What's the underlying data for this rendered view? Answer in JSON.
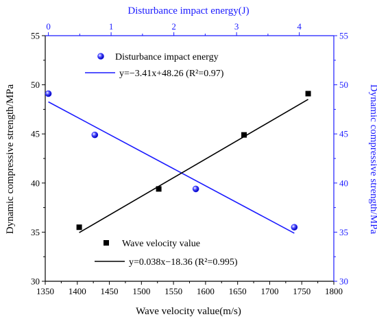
{
  "chart_data": {
    "type": "scatter",
    "x_bottom": {
      "label": "Wave velocity value(m/s)",
      "range": [
        1350,
        1800
      ],
      "ticks": [
        "1350",
        "1400",
        "1450",
        "1500",
        "1550",
        "1600",
        "1650",
        "1700",
        "1750",
        "1800"
      ]
    },
    "x_top": {
      "label": "Disturbance impact energy(J)",
      "range": [
        -0.05,
        4.55
      ],
      "ticks": [
        "0",
        "1",
        "2",
        "3",
        "4"
      ]
    },
    "y_left": {
      "label": "Dynamic compressive strength/MPa",
      "range": [
        30,
        55
      ],
      "ticks": [
        "30",
        "35",
        "40",
        "45",
        "50",
        "55"
      ]
    },
    "y_right": {
      "label": "Dynamic compressive strength/MPa",
      "range": [
        30,
        55
      ],
      "ticks": [
        "30",
        "35",
        "40",
        "45",
        "50",
        "55"
      ]
    },
    "series": [
      {
        "name": "Disturbance impact energy",
        "axis": "top",
        "color": "#1a1aff",
        "marker": "circle",
        "points": [
          {
            "x": 0,
            "y": 49.1
          },
          {
            "x": 0.74,
            "y": 44.9
          },
          {
            "x": 2.35,
            "y": 39.4
          },
          {
            "x": 3.92,
            "y": 35.5
          }
        ],
        "fit": {
          "label": "y=−3.41x+48.26 (R²=0.97)",
          "slope": -3.41,
          "intercept": 48.26,
          "x_range": [
            0,
            3.92
          ]
        }
      },
      {
        "name": "Wave velocity value",
        "axis": "bottom",
        "color": "#000000",
        "marker": "square",
        "points": [
          {
            "x": 1403,
            "y": 35.5
          },
          {
            "x": 1527,
            "y": 39.4
          },
          {
            "x": 1660,
            "y": 44.9
          },
          {
            "x": 1760,
            "y": 49.1
          }
        ],
        "fit": {
          "label": "y=0.038x−18.36 (R²=0.995)",
          "slope": 0.038,
          "intercept": -18.36,
          "x_range": [
            1403,
            1760
          ]
        }
      }
    ]
  }
}
